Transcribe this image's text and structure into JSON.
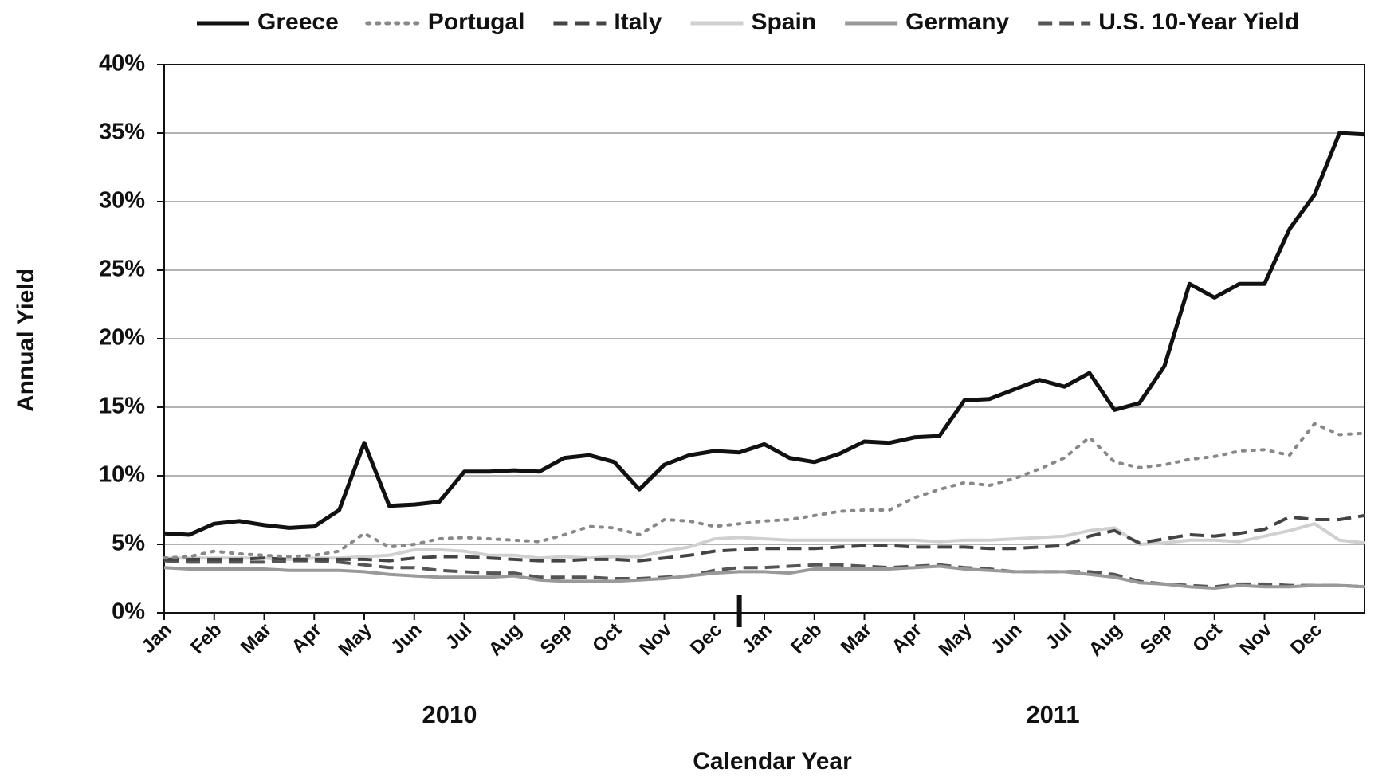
{
  "chart_data": {
    "type": "line",
    "x_title": "Calendar Year",
    "y_title": "Annual Yield",
    "year_labels": [
      "2010",
      "2011"
    ],
    "categories": [
      "Jan",
      null,
      "Feb",
      null,
      "Mar",
      null,
      "Apr",
      null,
      "May",
      null,
      "Jun",
      null,
      "Jul",
      null,
      "Aug",
      null,
      "Sep",
      null,
      "Oct",
      null,
      "Nov",
      null,
      "Dec",
      null,
      "Jan",
      null,
      "Feb",
      null,
      "Mar",
      null,
      "Apr",
      null,
      "May",
      null,
      "Jun",
      null,
      "Jul",
      null,
      "Aug",
      null,
      "Sep",
      null,
      "Oct",
      null,
      "Nov",
      null,
      "Dec",
      null,
      null
    ],
    "ylim": [
      0,
      40
    ],
    "yticks": [
      {
        "value": 0,
        "label": "0%"
      },
      {
        "value": 5,
        "label": "5%"
      },
      {
        "value": 10,
        "label": "10%"
      },
      {
        "value": 15,
        "label": "15%"
      },
      {
        "value": 20,
        "label": "20%"
      },
      {
        "value": 25,
        "label": "25%"
      },
      {
        "value": 30,
        "label": "30%"
      },
      {
        "value": 35,
        "label": "35%"
      },
      {
        "value": 40,
        "label": "40%"
      }
    ],
    "grid": true,
    "legend": "top",
    "series": [
      {
        "name": "Greece",
        "color": "#111111",
        "style": "solid",
        "values": [
          5.8,
          5.7,
          6.5,
          6.7,
          6.4,
          6.2,
          6.3,
          7.5,
          12.4,
          7.8,
          7.9,
          8.1,
          10.3,
          10.3,
          10.4,
          10.3,
          11.3,
          11.5,
          11.0,
          9.0,
          10.8,
          11.5,
          11.8,
          11.7,
          12.3,
          11.3,
          11.0,
          11.6,
          12.5,
          12.4,
          12.8,
          12.9,
          15.5,
          15.6,
          16.3,
          17.0,
          16.5,
          17.5,
          14.8,
          15.3,
          18.0,
          24.0,
          23.0,
          24.0,
          24.0,
          28.0,
          30.5,
          35.0,
          34.9
        ]
      },
      {
        "name": "Portugal",
        "color": "#888888",
        "style": "dotted",
        "values": [
          4.0,
          4.1,
          4.5,
          4.3,
          4.2,
          4.1,
          4.2,
          4.5,
          5.8,
          4.8,
          5.0,
          5.4,
          5.5,
          5.4,
          5.3,
          5.2,
          5.7,
          6.3,
          6.2,
          5.7,
          6.8,
          6.7,
          6.3,
          6.5,
          6.7,
          6.8,
          7.1,
          7.4,
          7.5,
          7.5,
          8.4,
          9.0,
          9.5,
          9.3,
          9.8,
          10.5,
          11.3,
          12.8,
          11.0,
          10.6,
          10.8,
          11.2,
          11.4,
          11.8,
          11.9,
          11.5,
          13.8,
          13.0,
          13.1
        ]
      },
      {
        "name": "Italy",
        "color": "#444444",
        "style": "dashed",
        "values": [
          3.9,
          3.9,
          3.9,
          3.9,
          4.0,
          3.9,
          3.9,
          3.9,
          3.9,
          3.8,
          4.0,
          4.1,
          4.1,
          4.0,
          3.9,
          3.8,
          3.8,
          3.9,
          3.9,
          3.8,
          4.0,
          4.2,
          4.5,
          4.6,
          4.7,
          4.7,
          4.7,
          4.8,
          4.9,
          4.9,
          4.8,
          4.8,
          4.8,
          4.7,
          4.7,
          4.8,
          4.9,
          5.6,
          6.0,
          5.1,
          5.4,
          5.7,
          5.6,
          5.8,
          6.1,
          7.0,
          6.8,
          6.8,
          7.1
        ]
      },
      {
        "name": "Spain",
        "color": "#d0d0d0",
        "style": "solid",
        "values": [
          4.0,
          4.0,
          4.0,
          4.0,
          4.0,
          3.9,
          4.0,
          4.0,
          4.1,
          4.2,
          4.6,
          4.6,
          4.5,
          4.2,
          4.2,
          4.0,
          4.1,
          4.0,
          4.1,
          4.1,
          4.5,
          4.8,
          5.4,
          5.5,
          5.4,
          5.3,
          5.3,
          5.3,
          5.3,
          5.3,
          5.3,
          5.2,
          5.3,
          5.3,
          5.4,
          5.5,
          5.6,
          6.0,
          6.2,
          5.0,
          5.1,
          5.3,
          5.3,
          5.2,
          5.6,
          6.0,
          6.5,
          5.3,
          5.1
        ]
      },
      {
        "name": "Germany",
        "color": "#999999",
        "style": "solid",
        "values": [
          3.3,
          3.2,
          3.2,
          3.2,
          3.2,
          3.1,
          3.1,
          3.1,
          3.0,
          2.8,
          2.7,
          2.6,
          2.6,
          2.6,
          2.7,
          2.4,
          2.3,
          2.3,
          2.3,
          2.4,
          2.5,
          2.7,
          2.9,
          3.0,
          3.0,
          2.9,
          3.2,
          3.2,
          3.2,
          3.2,
          3.3,
          3.4,
          3.2,
          3.1,
          3.0,
          3.0,
          3.0,
          2.8,
          2.6,
          2.2,
          2.1,
          1.9,
          1.8,
          2.0,
          1.9,
          1.9,
          2.0,
          2.0,
          1.9
        ]
      },
      {
        "name": "U.S. 10-Year Yield",
        "color": "#555555",
        "style": "dashed",
        "values": [
          3.8,
          3.7,
          3.7,
          3.7,
          3.7,
          3.8,
          3.8,
          3.7,
          3.5,
          3.3,
          3.3,
          3.1,
          3.0,
          2.9,
          2.9,
          2.6,
          2.6,
          2.6,
          2.5,
          2.5,
          2.6,
          2.7,
          3.1,
          3.3,
          3.3,
          3.4,
          3.5,
          3.5,
          3.4,
          3.3,
          3.4,
          3.5,
          3.3,
          3.2,
          3.0,
          3.0,
          3.0,
          3.0,
          2.8,
          2.3,
          2.1,
          2.0,
          1.9,
          2.1,
          2.1,
          2.0,
          2.0,
          2.0,
          1.9
        ]
      }
    ]
  }
}
